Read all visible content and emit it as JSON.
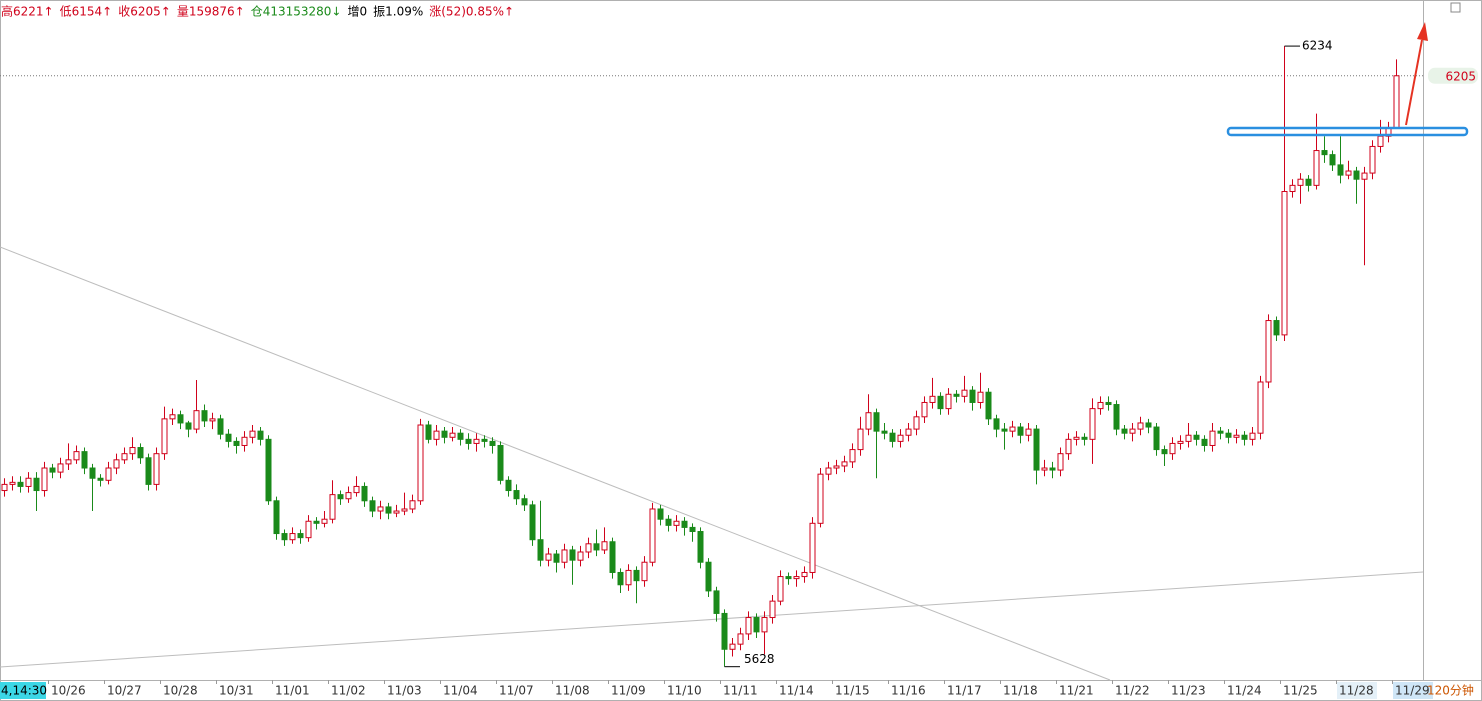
{
  "chart_data": {
    "type": "candlestick",
    "info_bar": [
      {
        "text": "高6221↑",
        "color": "#d0021b"
      },
      {
        "text": "低6154↑",
        "color": "#d0021b"
      },
      {
        "text": "收6205↑",
        "color": "#d0021b"
      },
      {
        "text": "量159876↑",
        "color": "#d0021b"
      },
      {
        "text": "仓413153280↓",
        "color": "#1a8a1a"
      },
      {
        "text": "增0",
        "color": "#000000"
      },
      {
        "text": "振1.09%",
        "color": "#000000"
      },
      {
        "text": "涨(52)0.85%↑",
        "color": "#d0021b"
      }
    ],
    "cursor_label": "4,14:30",
    "period_label": "120分钟",
    "x_labels": [
      "10/26",
      "10/27",
      "10/28",
      "10/31",
      "11/01",
      "11/02",
      "11/03",
      "11/04",
      "11/07",
      "11/08",
      "11/09",
      "11/10",
      "11/11",
      "11/14",
      "11/15",
      "11/16",
      "11/17",
      "11/18",
      "11/21",
      "11/22",
      "11/23",
      "11/24",
      "11/25",
      "11/28",
      "11/29"
    ],
    "up_color": "#d0021b",
    "down_color": "#1a8a1a",
    "ylim": [
      5615,
      6279
    ],
    "last_price": 6205,
    "extremes": {
      "high": 6234,
      "low": 5628
    },
    "open": [
      5800,
      5806,
      5808,
      5804,
      5812,
      5800,
      5822,
      5818,
      5826,
      5830,
      5838,
      5822,
      5812,
      5810,
      5822,
      5830,
      5836,
      5842,
      5832,
      5806,
      5836,
      5870,
      5874,
      5866,
      5860,
      5878,
      5868,
      5870,
      5855,
      5848,
      5844,
      5852,
      5858,
      5850,
      5790,
      5758,
      5752,
      5758,
      5754,
      5770,
      5768,
      5772,
      5796,
      5792,
      5798,
      5804,
      5790,
      5780,
      5784,
      5778,
      5780,
      5782,
      5790,
      5864,
      5850,
      5858,
      5852,
      5856,
      5850,
      5846,
      5850,
      5848,
      5844,
      5810,
      5800,
      5792,
      5786,
      5752,
      5732,
      5738,
      5730,
      5742,
      5732,
      5740,
      5748,
      5742,
      5750,
      5720,
      5708,
      5722,
      5712,
      5730,
      5782,
      5772,
      5766,
      5770,
      5764,
      5760,
      5730,
      5702,
      5680,
      5645,
      5650,
      5660,
      5676,
      5662,
      5676,
      5692,
      5716,
      5714,
      5716,
      5720,
      5768,
      5816,
      5822,
      5824,
      5828,
      5840,
      5860,
      5876,
      5858,
      5856,
      5848,
      5854,
      5860,
      5872,
      5886,
      5892,
      5880,
      5894,
      5892,
      5898,
      5886,
      5896,
      5870,
      5860,
      5858,
      5862,
      5854,
      5860,
      5820,
      5822,
      5820,
      5836,
      5850,
      5852,
      5850,
      5880,
      5886,
      5884,
      5860,
      5856,
      5860,
      5866,
      5862,
      5840,
      5836,
      5846,
      5848,
      5854,
      5850,
      5844,
      5858,
      5856,
      5852,
      5854,
      5850,
      5856,
      5906,
      5966,
      5952,
      6092,
      6098,
      6104,
      6098,
      6132,
      6128,
      6118,
      6108,
      6112,
      6104,
      6110,
      6136,
      6146,
      6154
    ],
    "high": [
      5812,
      5814,
      5814,
      5818,
      5818,
      5828,
      5826,
      5832,
      5846,
      5844,
      5842,
      5826,
      5816,
      5828,
      5836,
      5842,
      5852,
      5846,
      5836,
      5842,
      5882,
      5880,
      5878,
      5868,
      5908,
      5884,
      5876,
      5874,
      5860,
      5852,
      5858,
      5864,
      5862,
      5854,
      5794,
      5762,
      5764,
      5762,
      5776,
      5774,
      5780,
      5810,
      5800,
      5804,
      5814,
      5808,
      5794,
      5790,
      5788,
      5786,
      5798,
      5796,
      5870,
      5868,
      5864,
      5862,
      5862,
      5860,
      5856,
      5856,
      5854,
      5852,
      5848,
      5814,
      5806,
      5796,
      5790,
      5790,
      5744,
      5742,
      5748,
      5746,
      5746,
      5754,
      5762,
      5764,
      5754,
      5724,
      5728,
      5726,
      5736,
      5788,
      5786,
      5776,
      5776,
      5774,
      5768,
      5764,
      5734,
      5706,
      5684,
      5656,
      5666,
      5682,
      5680,
      5682,
      5698,
      5722,
      5720,
      5722,
      5726,
      5774,
      5822,
      5828,
      5830,
      5834,
      5846,
      5872,
      5894,
      5880,
      5866,
      5860,
      5860,
      5866,
      5878,
      5892,
      5910,
      5896,
      5900,
      5898,
      5912,
      5902,
      5915,
      5900,
      5874,
      5866,
      5868,
      5866,
      5866,
      5864,
      5830,
      5828,
      5842,
      5856,
      5858,
      5856,
      5890,
      5892,
      5892,
      5888,
      5864,
      5866,
      5872,
      5870,
      5866,
      5844,
      5852,
      5854,
      5866,
      5858,
      5854,
      5866,
      5862,
      5860,
      5860,
      5858,
      5862,
      5912,
      5972,
      5970,
      6234,
      6104,
      6110,
      6108,
      6168,
      6146,
      6132,
      6146,
      6122,
      6116,
      6116,
      6142,
      6162,
      6160,
      6221
    ],
    "low": [
      5794,
      5800,
      5798,
      5798,
      5780,
      5794,
      5812,
      5812,
      5820,
      5826,
      5816,
      5780,
      5804,
      5806,
      5816,
      5826,
      5830,
      5826,
      5800,
      5800,
      5830,
      5864,
      5860,
      5852,
      5856,
      5862,
      5860,
      5850,
      5842,
      5836,
      5838,
      5846,
      5844,
      5786,
      5752,
      5746,
      5748,
      5748,
      5750,
      5762,
      5764,
      5768,
      5786,
      5788,
      5794,
      5784,
      5774,
      5772,
      5772,
      5774,
      5776,
      5778,
      5786,
      5846,
      5844,
      5846,
      5848,
      5844,
      5840,
      5838,
      5842,
      5836,
      5806,
      5794,
      5786,
      5780,
      5746,
      5726,
      5726,
      5720,
      5724,
      5708,
      5726,
      5734,
      5736,
      5738,
      5714,
      5700,
      5702,
      5690,
      5706,
      5726,
      5766,
      5760,
      5760,
      5756,
      5750,
      5724,
      5696,
      5672,
      5628,
      5638,
      5644,
      5654,
      5656,
      5640,
      5670,
      5688,
      5708,
      5706,
      5710,
      5714,
      5764,
      5810,
      5816,
      5818,
      5822,
      5834,
      5854,
      5812,
      5850,
      5842,
      5842,
      5848,
      5854,
      5866,
      5880,
      5874,
      5874,
      5886,
      5886,
      5878,
      5880,
      5864,
      5852,
      5840,
      5852,
      5846,
      5848,
      5806,
      5814,
      5812,
      5814,
      5830,
      5844,
      5844,
      5826,
      5874,
      5878,
      5854,
      5850,
      5848,
      5854,
      5856,
      5834,
      5824,
      5830,
      5840,
      5842,
      5844,
      5838,
      5838,
      5850,
      5846,
      5846,
      5844,
      5844,
      5850,
      5900,
      5946,
      5946,
      6086,
      6080,
      6092,
      6094,
      6120,
      6112,
      6100,
      6104,
      6080,
      6020,
      6104,
      6130,
      6140,
      6154
    ],
    "close": [
      5806,
      5808,
      5804,
      5812,
      5800,
      5822,
      5818,
      5826,
      5830,
      5838,
      5822,
      5812,
      5810,
      5822,
      5830,
      5836,
      5842,
      5832,
      5806,
      5836,
      5870,
      5874,
      5866,
      5860,
      5878,
      5868,
      5870,
      5855,
      5848,
      5844,
      5852,
      5858,
      5850,
      5790,
      5758,
      5752,
      5758,
      5754,
      5770,
      5768,
      5772,
      5796,
      5792,
      5798,
      5804,
      5790,
      5780,
      5784,
      5778,
      5780,
      5782,
      5790,
      5864,
      5850,
      5858,
      5852,
      5856,
      5850,
      5846,
      5850,
      5848,
      5844,
      5810,
      5800,
      5792,
      5786,
      5752,
      5732,
      5738,
      5730,
      5742,
      5732,
      5740,
      5748,
      5742,
      5750,
      5720,
      5708,
      5722,
      5712,
      5730,
      5782,
      5772,
      5766,
      5770,
      5764,
      5760,
      5730,
      5702,
      5680,
      5645,
      5650,
      5660,
      5676,
      5662,
      5676,
      5692,
      5716,
      5714,
      5716,
      5720,
      5768,
      5816,
      5822,
      5824,
      5828,
      5840,
      5860,
      5876,
      5858,
      5856,
      5848,
      5854,
      5860,
      5872,
      5886,
      5892,
      5880,
      5894,
      5892,
      5898,
      5886,
      5896,
      5870,
      5860,
      5858,
      5862,
      5854,
      5860,
      5820,
      5822,
      5820,
      5836,
      5850,
      5852,
      5850,
      5880,
      5886,
      5884,
      5860,
      5856,
      5860,
      5866,
      5862,
      5840,
      5836,
      5846,
      5848,
      5854,
      5850,
      5844,
      5858,
      5856,
      5852,
      5854,
      5850,
      5856,
      5906,
      5966,
      5952,
      6092,
      6098,
      6104,
      6098,
      6132,
      6128,
      6118,
      6108,
      6112,
      6104,
      6110,
      6136,
      6146,
      6154,
      6205
    ]
  }
}
